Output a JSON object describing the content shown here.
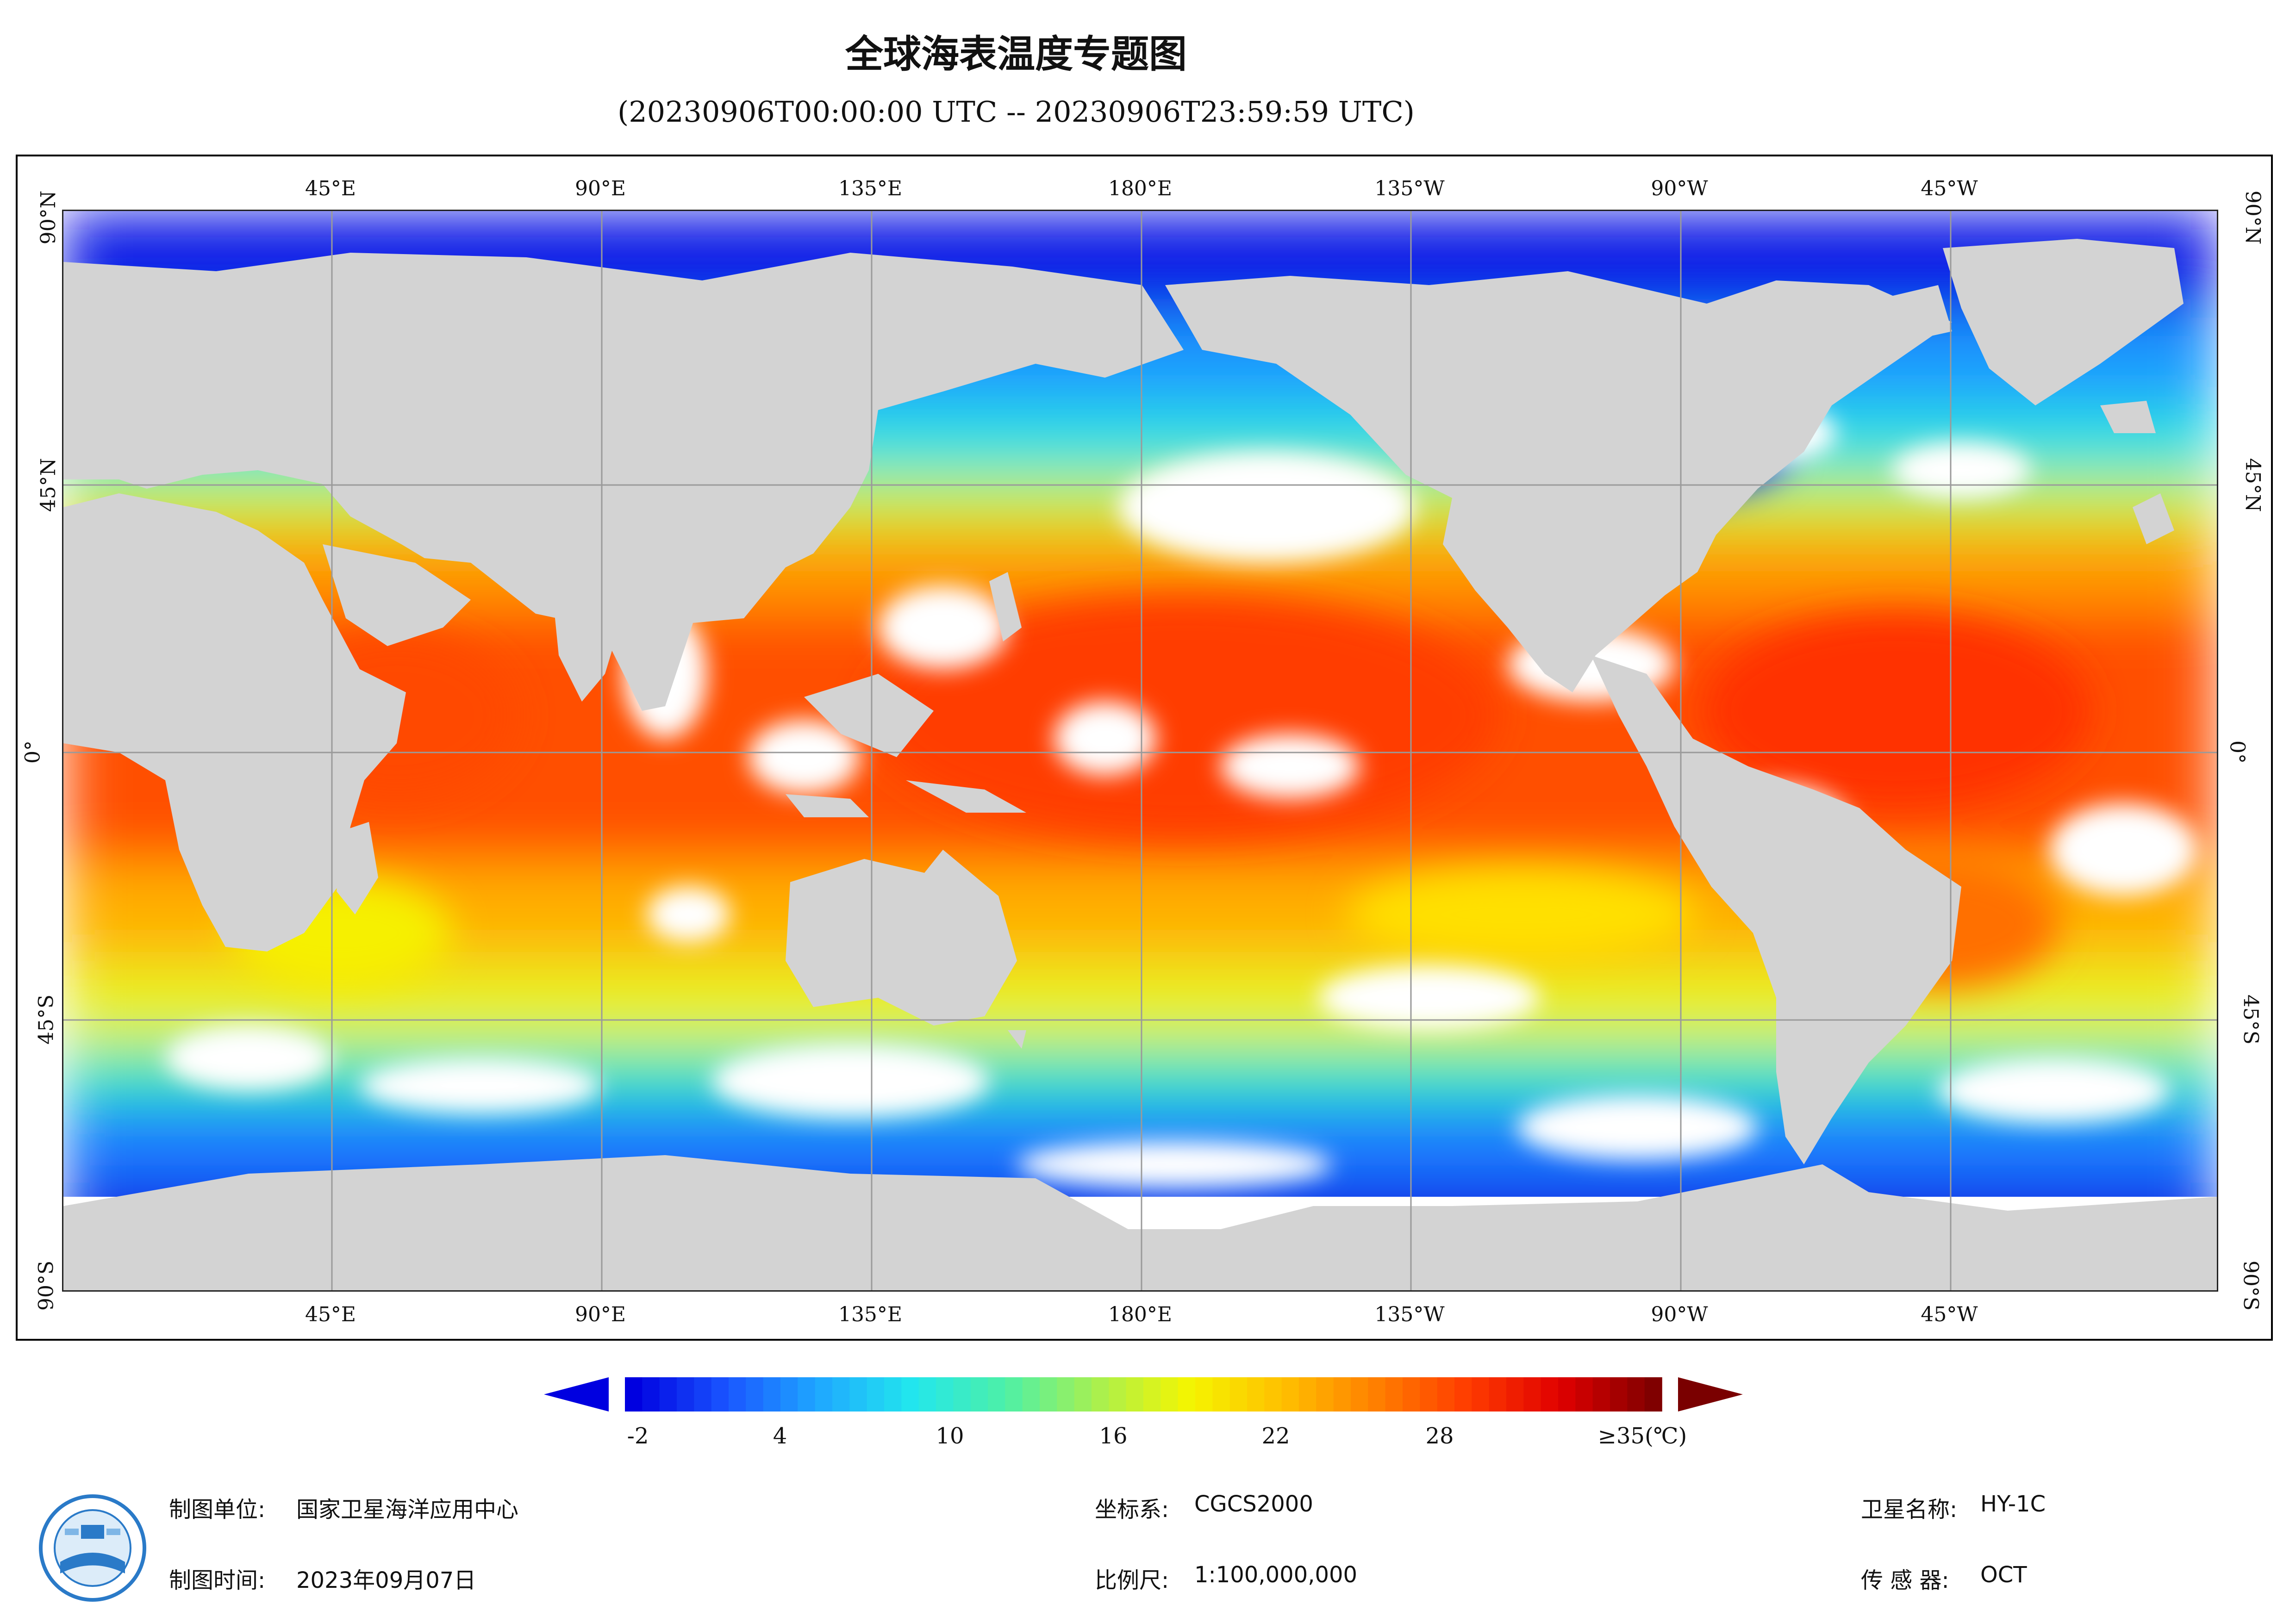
{
  "title": "全球海表温度专题图",
  "subtitle": "(20230906T00:00:00 UTC -- 20230906T23:59:59 UTC)",
  "map": {
    "lon_labels": [
      "45°E",
      "90°E",
      "135°E",
      "180°E",
      "135°W",
      "90°W",
      "45°W"
    ],
    "lat_labels": [
      "90°N",
      "45°N",
      "0°",
      "45°S",
      "90°S"
    ],
    "land_color": "#d3d3d3",
    "cloud_color": "#ffffff"
  },
  "legend": {
    "ticks": [
      "-2",
      "4",
      "10",
      "16",
      "22",
      "28",
      "≥35(℃)"
    ],
    "range": [
      -2,
      35
    ],
    "colors": [
      "#0000e0",
      "#1a55ff",
      "#1fa8ff",
      "#22e6ee",
      "#4df0a8",
      "#a8f050",
      "#f5f500",
      "#ffc000",
      "#ff8000",
      "#ff3c00",
      "#e00000",
      "#800000"
    ],
    "under_color": "#0000e0",
    "over_color": "#7a0000"
  },
  "meta": {
    "unit_label": "制图单位:",
    "unit_value": "国家卫星海洋应用中心",
    "time_label": "制图时间:",
    "time_value": "2023年09月07日",
    "crs_label": "坐标系:",
    "crs_value": "CGCS2000",
    "scale_label": "比例尺:",
    "scale_value": "1:100,000,000",
    "satellite_label": "卫星名称:",
    "satellite_value": "HY-1C",
    "sensor_label": "传 感 器:",
    "sensor_value": "OCT"
  }
}
